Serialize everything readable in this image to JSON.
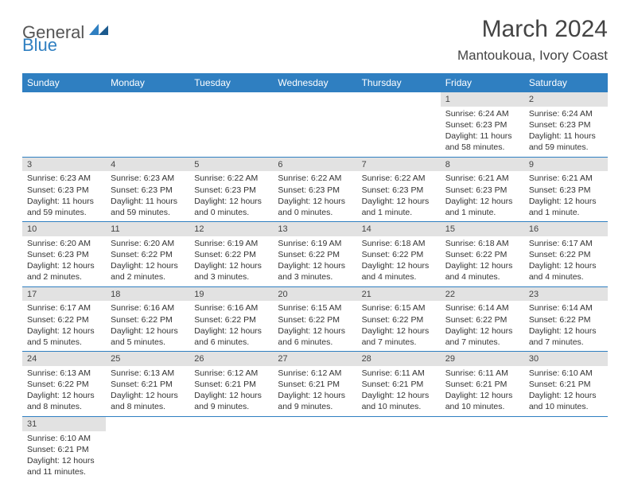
{
  "brand": {
    "part1": "General",
    "part2": "Blue"
  },
  "title": "March 2024",
  "location": "Mantoukoua, Ivory Coast",
  "colors": {
    "header_bg": "#2f7fc1",
    "header_text": "#ffffff",
    "daynum_bg": "#e2e2e2",
    "divider": "#2f7fc1",
    "text": "#333333",
    "background": "#ffffff"
  },
  "dayHeaders": [
    "Sunday",
    "Monday",
    "Tuesday",
    "Wednesday",
    "Thursday",
    "Friday",
    "Saturday"
  ],
  "weeks": [
    [
      {
        "empty": true
      },
      {
        "empty": true
      },
      {
        "empty": true
      },
      {
        "empty": true
      },
      {
        "empty": true
      },
      {
        "num": "1",
        "sunrise": "Sunrise: 6:24 AM",
        "sunset": "Sunset: 6:23 PM",
        "daylight": "Daylight: 11 hours and 58 minutes."
      },
      {
        "num": "2",
        "sunrise": "Sunrise: 6:24 AM",
        "sunset": "Sunset: 6:23 PM",
        "daylight": "Daylight: 11 hours and 59 minutes."
      }
    ],
    [
      {
        "num": "3",
        "sunrise": "Sunrise: 6:23 AM",
        "sunset": "Sunset: 6:23 PM",
        "daylight": "Daylight: 11 hours and 59 minutes."
      },
      {
        "num": "4",
        "sunrise": "Sunrise: 6:23 AM",
        "sunset": "Sunset: 6:23 PM",
        "daylight": "Daylight: 11 hours and 59 minutes."
      },
      {
        "num": "5",
        "sunrise": "Sunrise: 6:22 AM",
        "sunset": "Sunset: 6:23 PM",
        "daylight": "Daylight: 12 hours and 0 minutes."
      },
      {
        "num": "6",
        "sunrise": "Sunrise: 6:22 AM",
        "sunset": "Sunset: 6:23 PM",
        "daylight": "Daylight: 12 hours and 0 minutes."
      },
      {
        "num": "7",
        "sunrise": "Sunrise: 6:22 AM",
        "sunset": "Sunset: 6:23 PM",
        "daylight": "Daylight: 12 hours and 1 minute."
      },
      {
        "num": "8",
        "sunrise": "Sunrise: 6:21 AM",
        "sunset": "Sunset: 6:23 PM",
        "daylight": "Daylight: 12 hours and 1 minute."
      },
      {
        "num": "9",
        "sunrise": "Sunrise: 6:21 AM",
        "sunset": "Sunset: 6:23 PM",
        "daylight": "Daylight: 12 hours and 1 minute."
      }
    ],
    [
      {
        "num": "10",
        "sunrise": "Sunrise: 6:20 AM",
        "sunset": "Sunset: 6:23 PM",
        "daylight": "Daylight: 12 hours and 2 minutes."
      },
      {
        "num": "11",
        "sunrise": "Sunrise: 6:20 AM",
        "sunset": "Sunset: 6:22 PM",
        "daylight": "Daylight: 12 hours and 2 minutes."
      },
      {
        "num": "12",
        "sunrise": "Sunrise: 6:19 AM",
        "sunset": "Sunset: 6:22 PM",
        "daylight": "Daylight: 12 hours and 3 minutes."
      },
      {
        "num": "13",
        "sunrise": "Sunrise: 6:19 AM",
        "sunset": "Sunset: 6:22 PM",
        "daylight": "Daylight: 12 hours and 3 minutes."
      },
      {
        "num": "14",
        "sunrise": "Sunrise: 6:18 AM",
        "sunset": "Sunset: 6:22 PM",
        "daylight": "Daylight: 12 hours and 4 minutes."
      },
      {
        "num": "15",
        "sunrise": "Sunrise: 6:18 AM",
        "sunset": "Sunset: 6:22 PM",
        "daylight": "Daylight: 12 hours and 4 minutes."
      },
      {
        "num": "16",
        "sunrise": "Sunrise: 6:17 AM",
        "sunset": "Sunset: 6:22 PM",
        "daylight": "Daylight: 12 hours and 4 minutes."
      }
    ],
    [
      {
        "num": "17",
        "sunrise": "Sunrise: 6:17 AM",
        "sunset": "Sunset: 6:22 PM",
        "daylight": "Daylight: 12 hours and 5 minutes."
      },
      {
        "num": "18",
        "sunrise": "Sunrise: 6:16 AM",
        "sunset": "Sunset: 6:22 PM",
        "daylight": "Daylight: 12 hours and 5 minutes."
      },
      {
        "num": "19",
        "sunrise": "Sunrise: 6:16 AM",
        "sunset": "Sunset: 6:22 PM",
        "daylight": "Daylight: 12 hours and 6 minutes."
      },
      {
        "num": "20",
        "sunrise": "Sunrise: 6:15 AM",
        "sunset": "Sunset: 6:22 PM",
        "daylight": "Daylight: 12 hours and 6 minutes."
      },
      {
        "num": "21",
        "sunrise": "Sunrise: 6:15 AM",
        "sunset": "Sunset: 6:22 PM",
        "daylight": "Daylight: 12 hours and 7 minutes."
      },
      {
        "num": "22",
        "sunrise": "Sunrise: 6:14 AM",
        "sunset": "Sunset: 6:22 PM",
        "daylight": "Daylight: 12 hours and 7 minutes."
      },
      {
        "num": "23",
        "sunrise": "Sunrise: 6:14 AM",
        "sunset": "Sunset: 6:22 PM",
        "daylight": "Daylight: 12 hours and 7 minutes."
      }
    ],
    [
      {
        "num": "24",
        "sunrise": "Sunrise: 6:13 AM",
        "sunset": "Sunset: 6:22 PM",
        "daylight": "Daylight: 12 hours and 8 minutes."
      },
      {
        "num": "25",
        "sunrise": "Sunrise: 6:13 AM",
        "sunset": "Sunset: 6:21 PM",
        "daylight": "Daylight: 12 hours and 8 minutes."
      },
      {
        "num": "26",
        "sunrise": "Sunrise: 6:12 AM",
        "sunset": "Sunset: 6:21 PM",
        "daylight": "Daylight: 12 hours and 9 minutes."
      },
      {
        "num": "27",
        "sunrise": "Sunrise: 6:12 AM",
        "sunset": "Sunset: 6:21 PM",
        "daylight": "Daylight: 12 hours and 9 minutes."
      },
      {
        "num": "28",
        "sunrise": "Sunrise: 6:11 AM",
        "sunset": "Sunset: 6:21 PM",
        "daylight": "Daylight: 12 hours and 10 minutes."
      },
      {
        "num": "29",
        "sunrise": "Sunrise: 6:11 AM",
        "sunset": "Sunset: 6:21 PM",
        "daylight": "Daylight: 12 hours and 10 minutes."
      },
      {
        "num": "30",
        "sunrise": "Sunrise: 6:10 AM",
        "sunset": "Sunset: 6:21 PM",
        "daylight": "Daylight: 12 hours and 10 minutes."
      }
    ],
    [
      {
        "num": "31",
        "sunrise": "Sunrise: 6:10 AM",
        "sunset": "Sunset: 6:21 PM",
        "daylight": "Daylight: 12 hours and 11 minutes."
      },
      {
        "empty": true
      },
      {
        "empty": true
      },
      {
        "empty": true
      },
      {
        "empty": true
      },
      {
        "empty": true
      },
      {
        "empty": true
      }
    ]
  ]
}
